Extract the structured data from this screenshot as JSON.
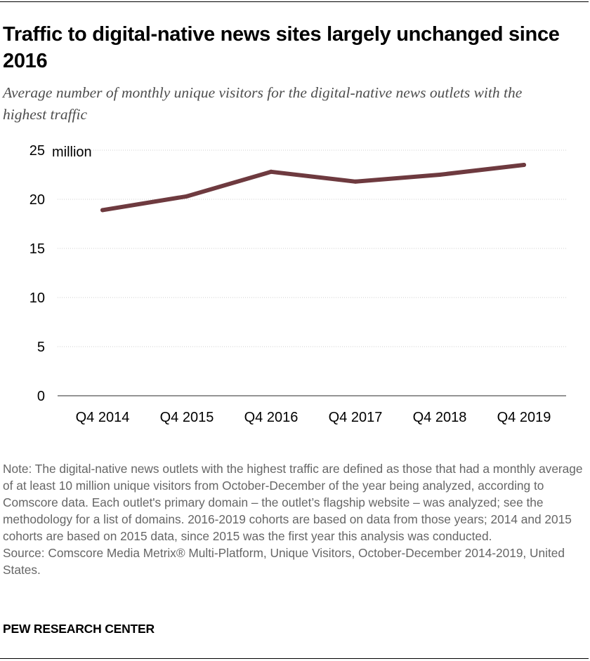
{
  "header": {
    "title": "Traffic to digital-native news sites largely unchanged since 2016",
    "subtitle": "Average number of monthly unique visitors for the digital-native news outlets with the highest traffic"
  },
  "chart_data": {
    "type": "line",
    "categories": [
      "Q4 2014",
      "Q4 2015",
      "Q4 2016",
      "Q4 2017",
      "Q4 2018",
      "Q4 2019"
    ],
    "series": [
      {
        "name": "Average monthly unique visitors (millions)",
        "values": [
          18.9,
          20.3,
          22.8,
          21.8,
          22.5,
          23.5
        ]
      }
    ],
    "yticks": [
      0,
      5,
      10,
      15,
      20,
      25
    ],
    "ylim": [
      0,
      25
    ],
    "yunit": "million",
    "line_color": "#6e3a3f",
    "grid": "dotted horizontal"
  },
  "footer": {
    "note": "Note: The digital-native news outlets with the highest traffic are defined as those that had a monthly average of at least 10 million unique visitors from October-December of the year being analyzed, according to Comscore data. Each outlet's primary domain – the outlet’s flagship website – was analyzed; see the methodology for a list of domains. 2016-2019 cohorts are based on data from those years; 2014 and 2015 cohorts are based on 2015 data, since 2015 was the first year this analysis was conducted.",
    "source": "Source: Comscore Media Metrix® Multi-Platform, Unique Visitors, October-December 2014-2019, United States.",
    "org": "PEW RESEARCH CENTER"
  }
}
